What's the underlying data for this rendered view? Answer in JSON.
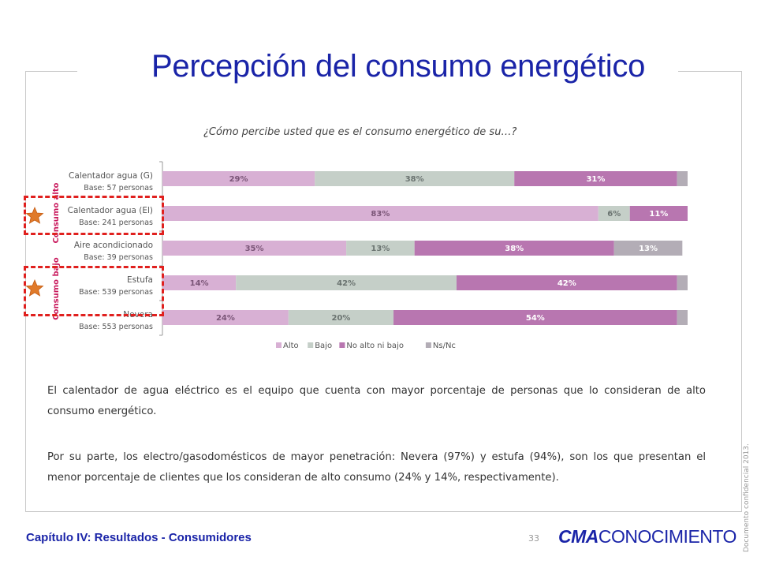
{
  "header": {
    "title": "Percepción del consumo energético"
  },
  "chart_question": "¿Cómo percibe usted que es el consumo energético de su…?",
  "chart_data": {
    "type": "bar",
    "orientation": "horizontal",
    "stacked": true,
    "categories": [
      "Calentador agua (G)",
      "Calentador agua (El)",
      "Aire acondicionado",
      "Estufa",
      "Nevera"
    ],
    "bases": [
      "Base: 57 personas",
      "Base: 241 personas",
      "Base: 39 personas",
      "Base: 539 personas",
      "Base: 553 personas"
    ],
    "series": [
      {
        "name": "Alto",
        "values": [
          29,
          83,
          35,
          14,
          24
        ],
        "color": "#d8b0d4",
        "labels": [
          "29%",
          "83%",
          "35%",
          "14%",
          "24%"
        ]
      },
      {
        "name": "Bajo",
        "values": [
          38,
          6,
          13,
          42,
          20
        ],
        "color": "#c5cfc8",
        "labels": [
          "38%",
          "6%",
          "13%",
          "42%",
          "20%"
        ]
      },
      {
        "name": "No alto ni bajo",
        "values": [
          31,
          11,
          38,
          42,
          54
        ],
        "color": "#b876b0",
        "labels": [
          "31%",
          "11%",
          "38%",
          "42%",
          "54%"
        ]
      },
      {
        "name": "Ns/Nc",
        "values": [
          2,
          0,
          13,
          2,
          2
        ],
        "color": "#b3adb6",
        "labels": [
          "",
          "",
          "13%",
          "",
          ""
        ]
      }
    ],
    "xlim": [
      0,
      100
    ],
    "legend_position": "bottom"
  },
  "groups": {
    "high": "Consumo alto",
    "low": "Consumo bajo"
  },
  "paragraphs": [
    "El calentador de agua eléctrico es el equipo que cuenta con mayor porcentaje de personas que lo consideran de alto consumo energético.",
    "Por su parte, los electro/gasodomésticos de mayor penetración: Nevera (97%) y estufa (94%), son los que presentan el menor porcentaje de clientes que los consideran de alto consumo (24% y 14%, respectivamente)."
  ],
  "footer": {
    "chapter": "Capítulo IV: Resultados - Consumidores",
    "page": "33",
    "brand_prefix": "CMA",
    "brand_suffix": "CONOCIMIENTO",
    "confidential": "Documento confidencial 2013."
  }
}
